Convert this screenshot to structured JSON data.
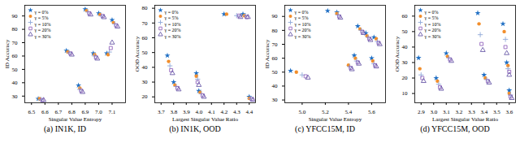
{
  "chart_data": [
    {
      "type": "scatter",
      "title": "(a) IN1K, ID",
      "x_label": "Singular Value Entropy",
      "y_label": "ID Accuracy",
      "xlim": [
        6.45,
        7.2
      ],
      "ylim": [
        25,
        98
      ],
      "xticks": [
        6.5,
        6.6,
        6.7,
        6.8,
        6.9,
        {
          "value": 7,
          "label": "7.0"
        },
        7.1
      ],
      "yticks": [
        30,
        40,
        50,
        60,
        70,
        80,
        90
      ],
      "legend": "upper left",
      "series": [
        {
          "name": "γ = 0%",
          "color": "#1f6fc4",
          "marker": "star",
          "values": [
            [
              6.55,
              28
            ],
            [
              6.76,
              64
            ],
            [
              6.85,
              38
            ],
            [
              6.9,
              95
            ],
            [
              6.96,
              62
            ],
            [
              7.0,
              92
            ],
            [
              7.06,
              62
            ],
            [
              7.1,
              87
            ]
          ]
        },
        {
          "name": "γ = 5%",
          "color": "#f28e2b",
          "marker": "circle",
          "values": [
            [
              6.56,
              28
            ],
            [
              6.77,
              63
            ],
            [
              6.86,
              36
            ],
            [
              6.91,
              94
            ],
            [
              6.97,
              61
            ],
            [
              7.01,
              91
            ],
            [
              7.07,
              61
            ],
            [
              7.11,
              85
            ]
          ]
        },
        {
          "name": "γ = 10%",
          "color": "#8fa8d8",
          "marker": "plus",
          "values": [
            [
              6.57,
              27.5
            ],
            [
              6.78,
              62.5
            ],
            [
              6.86,
              35
            ],
            [
              6.92,
              93
            ],
            [
              6.97,
              60
            ],
            [
              7.02,
              90
            ],
            [
              7.08,
              63
            ],
            [
              7.12,
              84
            ]
          ]
        },
        {
          "name": "γ = 20%",
          "color": "#9467bd",
          "marker": "square",
          "values": [
            [
              6.58,
              27
            ],
            [
              6.79,
              62
            ],
            [
              6.87,
              34
            ],
            [
              6.93,
              92
            ],
            [
              6.98,
              59
            ],
            [
              7.03,
              90
            ],
            [
              7.09,
              66
            ],
            [
              7.13,
              83
            ]
          ]
        },
        {
          "name": "γ = 30%",
          "color": "#6a5aa8",
          "marker": "triangle",
          "values": [
            [
              6.59,
              27
            ],
            [
              6.8,
              61
            ],
            [
              6.88,
              33
            ],
            [
              6.94,
              91
            ],
            [
              6.99,
              58
            ],
            [
              7.04,
              89
            ],
            [
              7.1,
              70
            ],
            [
              7.14,
              82
            ]
          ]
        }
      ]
    },
    {
      "type": "scatter",
      "title": "(b) IN1K, OOD",
      "x_label": "Largest Singular Value Ratio",
      "y_label": "OOD Accuracy",
      "xlim": [
        3.65,
        4.45
      ],
      "ylim": [
        16,
        82
      ],
      "xticks": [
        3.7,
        3.8,
        3.9,
        {
          "value": 4,
          "label": "4.0"
        },
        4.1,
        4.2,
        4.3,
        4.4
      ],
      "yticks": [
        20,
        30,
        40,
        50,
        60,
        70,
        80
      ],
      "legend": "upper left",
      "series": [
        {
          "name": "γ = 0%",
          "color": "#1f6fc4",
          "marker": "star",
          "values": [
            [
              3.75,
              48
            ],
            [
              3.8,
              30
            ],
            [
              3.98,
              36
            ],
            [
              4.0,
              24
            ],
            [
              4.2,
              76
            ],
            [
              4.35,
              76
            ],
            [
              4.4,
              20
            ]
          ]
        },
        {
          "name": "γ = 5%",
          "color": "#f28e2b",
          "marker": "circle",
          "values": [
            [
              3.76,
              44
            ],
            [
              3.81,
              28
            ],
            [
              3.98,
              34
            ],
            [
              4.01,
              23
            ],
            [
              4.22,
              76
            ],
            [
              4.36,
              75
            ],
            [
              4.4,
              19
            ]
          ]
        },
        {
          "name": "γ = 10%",
          "color": "#8fa8d8",
          "marker": "plus",
          "values": [
            [
              3.77,
              41
            ],
            [
              3.82,
              27
            ],
            [
              3.99,
              32
            ],
            [
              4.02,
              22
            ],
            [
              4.3,
              75
            ],
            [
              4.37,
              75
            ],
            [
              4.41,
              19
            ]
          ]
        },
        {
          "name": "γ = 20%",
          "color": "#9467bd",
          "marker": "square",
          "values": [
            [
              3.78,
              38
            ],
            [
              3.83,
              26
            ],
            [
              3.99,
              30
            ],
            [
              4.03,
              21
            ],
            [
              4.32,
              75
            ],
            [
              4.38,
              74
            ],
            [
              4.42,
              18.5
            ]
          ]
        },
        {
          "name": "γ = 30%",
          "color": "#6a5aa8",
          "marker": "triangle",
          "values": [
            [
              3.79,
              36
            ],
            [
              3.84,
              25
            ],
            [
              4.0,
              28
            ],
            [
              4.04,
              20
            ],
            [
              4.33,
              74
            ],
            [
              4.39,
              74
            ],
            [
              4.43,
              18
            ]
          ]
        }
      ]
    },
    {
      "type": "scatter",
      "title": "(c) YFCC15M, ID",
      "x_label": "Singular Value Entropy",
      "y_label": "ID Accuracy",
      "xlim": [
        4.85,
        5.72
      ],
      "ylim": [
        28,
        98
      ],
      "xticks": [
        {
          "value": 5,
          "label": "5.0"
        },
        5.2,
        5.4,
        5.6
      ],
      "yticks": [
        30,
        40,
        50,
        60,
        70,
        80,
        90
      ],
      "legend": "upper left",
      "series": [
        {
          "name": "γ = 0%",
          "color": "#1f6fc4",
          "marker": "star",
          "values": [
            [
              4.9,
              51
            ],
            [
              5.22,
              94
            ],
            [
              5.3,
              93
            ],
            [
              5.48,
              83
            ],
            [
              5.55,
              78
            ],
            [
              5.45,
              62
            ],
            [
              5.6,
              60
            ],
            [
              5.62,
              75
            ]
          ]
        },
        {
          "name": "γ = 5%",
          "color": "#f28e2b",
          "marker": "circle",
          "values": [
            [
              4.95,
              50
            ],
            [
              5.3,
              92
            ],
            [
              5.5,
              81
            ],
            [
              5.56,
              76
            ],
            [
              5.46,
              60
            ],
            [
              5.61,
              58
            ],
            [
              5.64,
              74
            ],
            [
              5.4,
              55
            ]
          ]
        },
        {
          "name": "γ = 10%",
          "color": "#8fa8d8",
          "marker": "plus",
          "values": [
            [
              5.0,
              48
            ],
            [
              5.31,
              91
            ],
            [
              5.51,
              80
            ],
            [
              5.57,
              75
            ],
            [
              5.47,
              58
            ],
            [
              5.62,
              56
            ],
            [
              5.65,
              72
            ],
            [
              5.41,
              54
            ]
          ]
        },
        {
          "name": "γ = 20%",
          "color": "#9467bd",
          "marker": "square",
          "values": [
            [
              5.03,
              47
            ],
            [
              5.32,
              90
            ],
            [
              5.52,
              79
            ],
            [
              5.58,
              74
            ],
            [
              5.48,
              57
            ],
            [
              5.63,
              55
            ],
            [
              5.66,
              71
            ],
            [
              5.42,
              53
            ]
          ]
        },
        {
          "name": "γ = 30%",
          "color": "#6a5aa8",
          "marker": "triangle",
          "values": [
            [
              5.05,
              46
            ],
            [
              5.33,
              89
            ],
            [
              5.53,
              78
            ],
            [
              5.59,
              73
            ],
            [
              5.49,
              56
            ],
            [
              5.64,
              54
            ],
            [
              5.67,
              70
            ],
            [
              5.43,
              52
            ]
          ]
        }
      ]
    },
    {
      "type": "scatter",
      "title": "(d) YFCC15M, OOD",
      "x_label": "Largest Singular Value Ratio",
      "y_label": "OOD Accuracy",
      "xlim": [
        2.85,
        3.65
      ],
      "ylim": [
        4,
        67
      ],
      "xticks": [
        2.9,
        {
          "value": 3,
          "label": "3.0"
        },
        3.1,
        3.2,
        3.3,
        3.4,
        3.5,
        3.6
      ],
      "yticks": [
        10,
        20,
        30,
        40,
        50,
        60
      ],
      "legend": "upper left",
      "series": [
        {
          "name": "γ = 0%",
          "color": "#1f6fc4",
          "marker": "star",
          "values": [
            [
              2.88,
              33
            ],
            [
              3.02,
              20
            ],
            [
              3.1,
              36
            ],
            [
              3.35,
              62
            ],
            [
              3.4,
              22
            ],
            [
              3.55,
              55
            ],
            [
              3.58,
              30
            ],
            [
              3.6,
              12
            ]
          ]
        },
        {
          "name": "γ = 5%",
          "color": "#f28e2b",
          "marker": "circle",
          "values": [
            [
              2.89,
              26
            ],
            [
              3.03,
              18
            ],
            [
              3.11,
              34
            ],
            [
              3.36,
              55
            ],
            [
              3.41,
              20
            ],
            [
              3.56,
              50
            ],
            [
              3.59,
              28
            ],
            [
              3.6,
              10
            ]
          ]
        },
        {
          "name": "γ = 10%",
          "color": "#8fa8d8",
          "marker": "plus",
          "values": [
            [
              2.9,
              22
            ],
            [
              3.04,
              16
            ],
            [
              3.12,
              33
            ],
            [
              3.37,
              48
            ],
            [
              3.42,
              19
            ],
            [
              3.57,
              45
            ],
            [
              3.59,
              26
            ],
            [
              3.61,
              9
            ]
          ]
        },
        {
          "name": "γ = 20%",
          "color": "#9467bd",
          "marker": "square",
          "values": [
            [
              2.91,
              20
            ],
            [
              3.05,
              14
            ],
            [
              3.13,
              32
            ],
            [
              3.38,
              42
            ],
            [
              3.43,
              18
            ],
            [
              3.57,
              40
            ],
            [
              3.6,
              24
            ],
            [
              3.61,
              8
            ]
          ]
        },
        {
          "name": "γ = 30%",
          "color": "#6a5aa8",
          "marker": "triangle",
          "values": [
            [
              2.92,
              18
            ],
            [
              3.06,
              13
            ],
            [
              3.14,
              31
            ],
            [
              3.39,
              38
            ],
            [
              3.44,
              17
            ],
            [
              3.58,
              36
            ],
            [
              3.6,
              22
            ],
            [
              3.62,
              7
            ]
          ]
        }
      ]
    }
  ]
}
